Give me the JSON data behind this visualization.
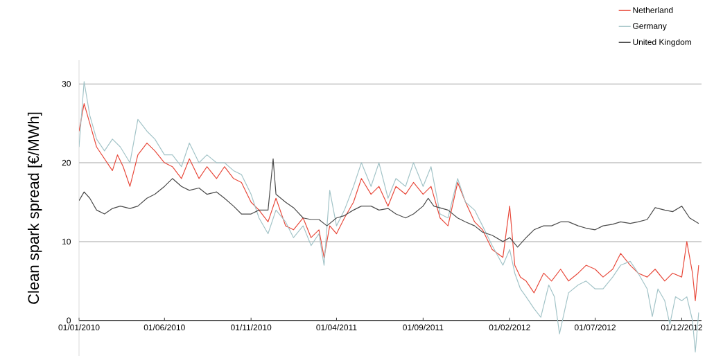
{
  "chart_data": {
    "type": "line",
    "ylabel": "Clean spark spread [€/MWh]",
    "xlim": [
      "2010-01-01",
      "2013-01-05"
    ],
    "ylim": [
      -4.5,
      33
    ],
    "xticks": [
      {
        "value": "2010-01-01",
        "label": "01/01/2010"
      },
      {
        "value": "2010-06-01",
        "label": "01/06/2010"
      },
      {
        "value": "2010-11-01",
        "label": "01/11/2010"
      },
      {
        "value": "2011-04-01",
        "label": "01/04/2011"
      },
      {
        "value": "2011-09-01",
        "label": "01/09/2011"
      },
      {
        "value": "2012-02-01",
        "label": "01/02/2012"
      },
      {
        "value": "2012-07-01",
        "label": "01/07/2012"
      },
      {
        "value": "2012-12-01",
        "label": "01/12/2012"
      }
    ],
    "yticks": [
      0,
      10,
      20,
      30
    ],
    "grid": "y",
    "legend": "top right",
    "marker": "none",
    "line_style": "solid",
    "series": [
      {
        "name": "Netherland",
        "color": "#e84a3c",
        "x": [
          "2010-01-01",
          "2010-01-10",
          "2010-01-20",
          "2010-02-01",
          "2010-02-15",
          "2010-03-01",
          "2010-03-10",
          "2010-03-20",
          "2010-04-01",
          "2010-04-15",
          "2010-05-01",
          "2010-05-15",
          "2010-06-01",
          "2010-06-15",
          "2010-07-01",
          "2010-07-15",
          "2010-08-01",
          "2010-08-15",
          "2010-09-01",
          "2010-09-15",
          "2010-10-01",
          "2010-10-15",
          "2010-11-01",
          "2010-11-15",
          "2010-12-01",
          "2010-12-15",
          "2011-01-01",
          "2011-01-15",
          "2011-02-01",
          "2011-02-15",
          "2011-03-01",
          "2011-03-10",
          "2011-03-20",
          "2011-04-01",
          "2011-04-15",
          "2011-05-01",
          "2011-05-15",
          "2011-06-01",
          "2011-06-15",
          "2011-07-01",
          "2011-07-15",
          "2011-08-01",
          "2011-08-15",
          "2011-09-01",
          "2011-09-15",
          "2011-10-01",
          "2011-10-15",
          "2011-11-01",
          "2011-11-15",
          "2011-12-01",
          "2011-12-15",
          "2012-01-01",
          "2012-01-20",
          "2012-02-01",
          "2012-02-10",
          "2012-02-20",
          "2012-03-01",
          "2012-03-15",
          "2012-04-01",
          "2012-04-15",
          "2012-05-01",
          "2012-05-15",
          "2012-06-01",
          "2012-06-15",
          "2012-07-01",
          "2012-07-15",
          "2012-08-01",
          "2012-08-15",
          "2012-09-01",
          "2012-09-15",
          "2012-10-01",
          "2012-10-15",
          "2012-11-01",
          "2012-11-15",
          "2012-12-01",
          "2012-12-10",
          "2012-12-20",
          "2012-12-25",
          "2012-12-31"
        ],
        "values": [
          24,
          27.5,
          25,
          22,
          20.5,
          19,
          21,
          19.5,
          17,
          21,
          22.5,
          21.5,
          20,
          19.5,
          18,
          20.5,
          18,
          19.5,
          18,
          19.5,
          18,
          17.5,
          15,
          14,
          12.5,
          15.5,
          12,
          11.5,
          13,
          10.5,
          11.5,
          8,
          12,
          11,
          13,
          15,
          18,
          16,
          17,
          14.5,
          17,
          16,
          17.5,
          16,
          17,
          13,
          12,
          17.5,
          15,
          12.5,
          11.5,
          9,
          8,
          14.5,
          7,
          5.5,
          5,
          3.5,
          6,
          5,
          6.5,
          5,
          6,
          7,
          6.5,
          5.5,
          6.5,
          8.5,
          7,
          6,
          5.5,
          6.5,
          5,
          6,
          5.5,
          10,
          6,
          2.5,
          7
        ]
      },
      {
        "name": "Germany",
        "color": "#a3c4c8",
        "x": [
          "2010-01-01",
          "2010-01-10",
          "2010-01-20",
          "2010-02-01",
          "2010-02-15",
          "2010-03-01",
          "2010-03-15",
          "2010-04-01",
          "2010-04-15",
          "2010-05-01",
          "2010-05-15",
          "2010-06-01",
          "2010-06-15",
          "2010-07-01",
          "2010-07-15",
          "2010-08-01",
          "2010-08-15",
          "2010-09-01",
          "2010-09-15",
          "2010-10-01",
          "2010-10-15",
          "2010-11-01",
          "2010-11-15",
          "2010-12-01",
          "2010-12-15",
          "2011-01-01",
          "2011-01-15",
          "2011-02-01",
          "2011-02-15",
          "2011-03-01",
          "2011-03-10",
          "2011-03-20",
          "2011-04-01",
          "2011-04-15",
          "2011-05-01",
          "2011-05-15",
          "2011-06-01",
          "2011-06-15",
          "2011-07-01",
          "2011-07-15",
          "2011-08-01",
          "2011-08-15",
          "2011-09-01",
          "2011-09-15",
          "2011-10-01",
          "2011-10-15",
          "2011-11-01",
          "2011-11-15",
          "2011-12-01",
          "2011-12-15",
          "2012-01-01",
          "2012-01-20",
          "2012-02-01",
          "2012-02-10",
          "2012-02-20",
          "2012-03-01",
          "2012-03-15",
          "2012-03-27",
          "2012-04-10",
          "2012-04-20",
          "2012-04-29",
          "2012-05-15",
          "2012-06-01",
          "2012-06-15",
          "2012-07-01",
          "2012-07-15",
          "2012-08-01",
          "2012-08-15",
          "2012-09-01",
          "2012-09-15",
          "2012-10-01",
          "2012-10-10",
          "2012-10-20",
          "2012-11-01",
          "2012-11-10",
          "2012-11-20",
          "2012-12-01",
          "2012-12-10",
          "2012-12-20",
          "2012-12-25",
          "2012-12-31"
        ],
        "values": [
          22,
          30.3,
          26,
          23,
          21.5,
          23,
          22,
          20,
          25.5,
          24,
          23,
          21,
          21,
          19.5,
          22.5,
          20,
          21,
          20,
          20,
          19,
          18.5,
          16,
          13,
          11,
          14,
          12.5,
          10.5,
          12,
          9.5,
          11,
          7,
          16.5,
          12,
          14,
          17,
          20,
          17,
          20,
          15.5,
          18,
          17,
          20,
          17,
          19.5,
          13.5,
          13,
          18,
          15,
          14,
          12,
          9.5,
          7,
          9,
          6,
          4,
          3,
          1.5,
          0.4,
          4.5,
          3,
          -1.7,
          3.5,
          4.5,
          5,
          4,
          4,
          5.5,
          7,
          7.5,
          6,
          4,
          0.5,
          4,
          2.5,
          -0.5,
          3,
          2.5,
          3,
          0,
          -4,
          1
        ]
      },
      {
        "name": "United Kingdom",
        "color": "#4a4a4a",
        "x": [
          "2010-01-01",
          "2010-01-10",
          "2010-01-20",
          "2010-02-01",
          "2010-02-15",
          "2010-03-01",
          "2010-03-15",
          "2010-04-01",
          "2010-04-15",
          "2010-05-01",
          "2010-05-15",
          "2010-06-01",
          "2010-06-15",
          "2010-07-01",
          "2010-07-15",
          "2010-08-01",
          "2010-08-15",
          "2010-09-01",
          "2010-09-15",
          "2010-10-01",
          "2010-10-15",
          "2010-11-01",
          "2010-11-15",
          "2010-12-01",
          "2010-12-10",
          "2010-12-15",
          "2011-01-01",
          "2011-01-15",
          "2011-02-01",
          "2011-02-15",
          "2011-03-01",
          "2011-03-15",
          "2011-04-01",
          "2011-04-15",
          "2011-05-01",
          "2011-05-15",
          "2011-06-01",
          "2011-06-15",
          "2011-07-01",
          "2011-07-15",
          "2011-08-01",
          "2011-08-15",
          "2011-09-01",
          "2011-09-10",
          "2011-09-20",
          "2011-10-15",
          "2011-11-01",
          "2011-11-15",
          "2011-12-01",
          "2011-12-15",
          "2012-01-01",
          "2012-01-20",
          "2012-02-01",
          "2012-02-15",
          "2012-03-01",
          "2012-03-15",
          "2012-04-01",
          "2012-04-15",
          "2012-05-01",
          "2012-05-15",
          "2012-06-01",
          "2012-06-15",
          "2012-07-01",
          "2012-07-15",
          "2012-08-01",
          "2012-08-15",
          "2012-09-01",
          "2012-09-15",
          "2012-10-01",
          "2012-10-15",
          "2012-11-01",
          "2012-11-15",
          "2012-12-01",
          "2012-12-15",
          "2012-12-31"
        ],
        "values": [
          15.2,
          16.3,
          15.5,
          14,
          13.5,
          14.2,
          14.5,
          14.2,
          14.5,
          15.5,
          16,
          17,
          18,
          17,
          16.5,
          16.8,
          16,
          16.3,
          15.5,
          14.5,
          13.5,
          13.5,
          14,
          14,
          20.5,
          16,
          15,
          14.3,
          13,
          12.8,
          12.8,
          12,
          13,
          13.3,
          14,
          14.5,
          14.5,
          14,
          14.2,
          13.5,
          13,
          13.5,
          14.5,
          15.5,
          14.5,
          14,
          13,
          12.5,
          12,
          11.2,
          10.8,
          10,
          10.5,
          9.3,
          10.5,
          11.5,
          12,
          12,
          12.5,
          12.5,
          12,
          11.7,
          11.5,
          12,
          12.2,
          12.5,
          12.3,
          12.5,
          12.8,
          14.3,
          14,
          13.8,
          14.5,
          13,
          12.3
        ]
      }
    ]
  }
}
